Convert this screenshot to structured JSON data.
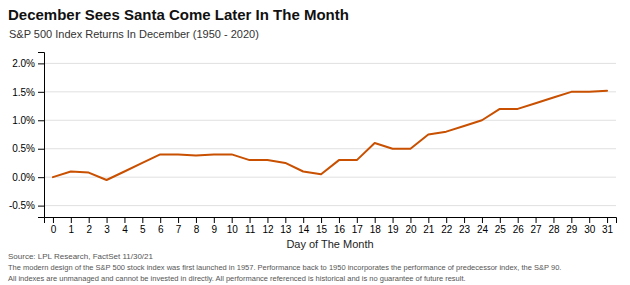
{
  "chart_data": {
    "type": "line",
    "title": "December Sees Santa Come Later In The Month",
    "subtitle": "S&P 500 Index Returns In December (1950 - 2020)",
    "xlabel": "Day of The Month",
    "annotations": [
      "Source: LPL Research, FactSet 11/30/21",
      "The modern design of the S&P 500 stock index was first launched in 1957. Performance back to 1950 incorporates the performance of predecessor index, the S&P 90.",
      "All indexes are unmanaged and cannot be invested in directly. All performance referenced is historical and is no guarantee of future result."
    ],
    "color": "#C85000",
    "x": [
      0,
      1,
      2,
      3,
      4,
      5,
      6,
      7,
      8,
      9,
      10,
      11,
      12,
      13,
      14,
      15,
      16,
      17,
      18,
      19,
      20,
      21,
      22,
      23,
      24,
      25,
      26,
      27,
      28,
      29,
      30,
      31
    ],
    "values": [
      0.0,
      0.001,
      0.0008,
      -0.0005,
      0.001,
      0.0025,
      0.004,
      0.004,
      0.0038,
      0.004,
      0.004,
      0.003,
      0.003,
      0.0025,
      0.001,
      0.0005,
      0.003,
      0.003,
      0.006,
      0.005,
      0.005,
      0.0075,
      0.008,
      0.009,
      0.01,
      0.012,
      0.012,
      0.013,
      0.014,
      0.015,
      0.015,
      0.0152
    ],
    "xlim": [
      -0.5,
      31.5
    ],
    "xticks": [
      0,
      1,
      2,
      3,
      4,
      5,
      6,
      7,
      8,
      9,
      10,
      11,
      12,
      13,
      14,
      15,
      16,
      17,
      18,
      19,
      20,
      21,
      22,
      23,
      24,
      25,
      26,
      27,
      28,
      29,
      30,
      31
    ],
    "ylim": [
      -0.007,
      0.022
    ],
    "yticks": [
      {
        "value": -0.005,
        "label": "-0.5%"
      },
      {
        "value": 0.0,
        "label": "0.0%"
      },
      {
        "value": 0.005,
        "label": "0.5%"
      },
      {
        "value": 0.01,
        "label": "1.0%"
      },
      {
        "value": 0.015,
        "label": "1.5%"
      },
      {
        "value": 0.02,
        "label": "2.0%"
      }
    ],
    "grid": true
  }
}
